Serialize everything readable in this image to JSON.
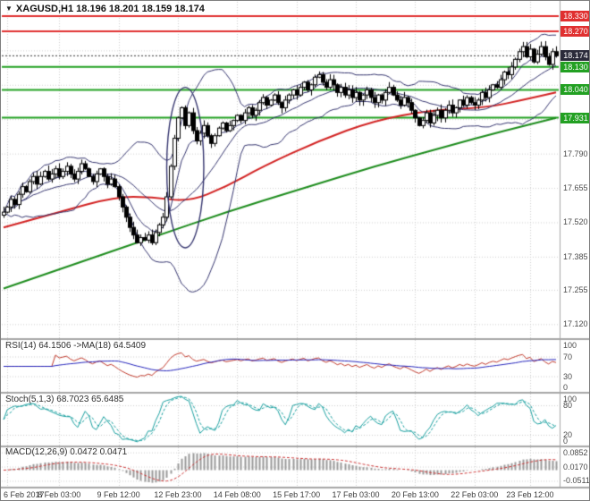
{
  "window": {
    "marker": "▼",
    "symbol": "XAGUSD,H1",
    "ohlc": "18.196 18.201 18.159 18.174"
  },
  "colors": {
    "level_red": "#e03030",
    "level_green": "#22a022",
    "current_badge": "#2b2b3a",
    "current_line": "#333333",
    "bands": "#34346e",
    "ma_red": "#d22222",
    "ma_green": "#1d8c1d",
    "candle_up": "#ffffff",
    "candle_down": "#000000",
    "candle_outline": "#000000",
    "rsi": "#c0392b",
    "rsi_ma": "#2323bb",
    "stoch": "#169e9e",
    "macd_hist": "#9a9a9a",
    "macd_signal": "#cc3333",
    "grid": "#cfcfcf",
    "separator": "#a6a6a6",
    "axis_text": "#4a4a4a"
  },
  "price_axis": {
    "labels": [
      "17.790",
      "17.655",
      "17.520",
      "17.385",
      "17.255",
      "17.120"
    ]
  },
  "time_axis": {
    "labels": [
      "6 Feb 2017",
      "8 Feb 03:00",
      "9 Feb 12:00",
      "12 Feb 23:00",
      "14 Feb 08:00",
      "15 Feb 17:00",
      "17 Feb 03:00",
      "20 Feb 13:00",
      "22 Feb 03:00",
      "23 Feb 12:00"
    ],
    "tick_indices": [
      1,
      15,
      31,
      47,
      63,
      79,
      95,
      111,
      127,
      142
    ]
  },
  "panels": {
    "rsi": {
      "title": "RSI(14) 64.1506 ->MA(18) 64.5409",
      "axis": [
        "100",
        "70",
        "30",
        "0"
      ],
      "dotted_levels": [
        70,
        30
      ]
    },
    "stoch": {
      "title": "Stoch(5,1,3) 68.7023 65.6485",
      "axis": [
        "100",
        "80",
        "20",
        "0"
      ],
      "dotted_levels": [
        80,
        20
      ]
    },
    "macd": {
      "title": "MACD(12,26,9) 0.0472 0.0471",
      "axis": [
        "0.0852",
        "0.0170",
        "-0.0511"
      ],
      "dotted_levels": [
        0.0852,
        0.017,
        -0.0511
      ]
    }
  },
  "chart_data": {
    "type": "candlestick",
    "symbol": "XAGUSD",
    "timeframe": "H1",
    "title": "XAGUSD,H1",
    "last_bar": {
      "open": 18.196,
      "high": 18.201,
      "low": 18.159,
      "close": 18.174
    },
    "ylim": [
      17.065,
      18.386
    ],
    "grid_prices": [
      18.195,
      18.06,
      17.925,
      17.79,
      17.655,
      17.52,
      17.385,
      17.255,
      17.12
    ],
    "closes": [
      17.56,
      17.58,
      17.61,
      17.59,
      17.63,
      17.66,
      17.64,
      17.68,
      17.7,
      17.67,
      17.7,
      17.72,
      17.69,
      17.71,
      17.73,
      17.7,
      17.72,
      17.74,
      17.71,
      17.69,
      17.72,
      17.75,
      17.73,
      17.7,
      17.68,
      17.71,
      17.73,
      17.7,
      17.67,
      17.69,
      17.66,
      17.62,
      17.58,
      17.54,
      17.5,
      17.47,
      17.44,
      17.46,
      17.45,
      17.47,
      17.44,
      17.48,
      17.51,
      17.54,
      17.62,
      17.74,
      17.85,
      17.93,
      17.97,
      17.9,
      17.95,
      17.88,
      17.84,
      17.87,
      17.9,
      17.86,
      17.83,
      17.86,
      17.89,
      17.91,
      17.88,
      17.9,
      17.92,
      17.94,
      17.92,
      17.95,
      17.97,
      17.94,
      17.96,
      17.99,
      18.01,
      17.98,
      18.0,
      18.02,
      17.99,
      17.97,
      18.0,
      18.02,
      18.04,
      18.02,
      18.05,
      18.07,
      18.04,
      18.06,
      18.09,
      18.1,
      18.07,
      18.05,
      18.08,
      18.06,
      18.03,
      18.05,
      18.02,
      18.04,
      18.01,
      18.03,
      18.0,
      18.02,
      18.04,
      18.01,
      17.99,
      18.02,
      18.0,
      18.03,
      18.05,
      18.02,
      18.0,
      17.98,
      18.01,
      17.99,
      17.96,
      17.93,
      17.9,
      17.92,
      17.95,
      17.91,
      17.94,
      17.96,
      17.93,
      17.96,
      17.98,
      17.95,
      17.97,
      18.0,
      17.98,
      18.01,
      17.99,
      17.98,
      18.0,
      18.03,
      18.01,
      18.04,
      18.06,
      18.05,
      18.08,
      18.11,
      18.1,
      18.13,
      18.16,
      18.19,
      18.21,
      18.17,
      18.2,
      18.15,
      18.18,
      18.21,
      18.17,
      18.14,
      18.19,
      18.174
    ],
    "levels": [
      {
        "price": 18.33,
        "label": "18.330",
        "role": "resistance"
      },
      {
        "price": 18.27,
        "label": "18.270",
        "role": "resistance"
      },
      {
        "price": 18.174,
        "label": "18.174",
        "role": "current"
      },
      {
        "price": 18.13,
        "label": "18.130",
        "role": "support"
      },
      {
        "price": 18.04,
        "label": "18.040",
        "role": "support"
      },
      {
        "price": 17.931,
        "label": "17.931",
        "role": "support"
      }
    ],
    "ma_red_keypoints": [
      [
        0,
        17.5
      ],
      [
        15,
        17.56
      ],
      [
        30,
        17.62
      ],
      [
        40,
        17.62
      ],
      [
        50,
        17.6
      ],
      [
        60,
        17.66
      ],
      [
        70,
        17.74
      ],
      [
        85,
        17.84
      ],
      [
        100,
        17.92
      ],
      [
        115,
        17.96
      ],
      [
        130,
        17.97
      ],
      [
        140,
        18.0
      ],
      [
        149,
        18.03
      ]
    ],
    "ma_green_keypoints": [
      [
        0,
        17.26
      ],
      [
        20,
        17.36
      ],
      [
        40,
        17.46
      ],
      [
        60,
        17.56
      ],
      [
        80,
        17.65
      ],
      [
        100,
        17.74
      ],
      [
        120,
        17.82
      ],
      [
        135,
        17.88
      ],
      [
        149,
        17.93
      ]
    ],
    "ellipse": {
      "index": 49,
      "half_width_candles": 5,
      "price_top": 18.05,
      "price_bottom": 17.42
    },
    "indicators": {
      "bollinger": {
        "period": 20,
        "deviation": 2
      },
      "rsi": {
        "period": 14,
        "ma_period": 18,
        "value": "64.1506",
        "ma_value": "64.5409"
      },
      "stochastic": {
        "params": "5,1,3",
        "main": "68.7023",
        "signal": "65.6485"
      },
      "macd": {
        "params": "12,26,9",
        "value": "0.0472",
        "signal": "0.0471"
      }
    }
  }
}
